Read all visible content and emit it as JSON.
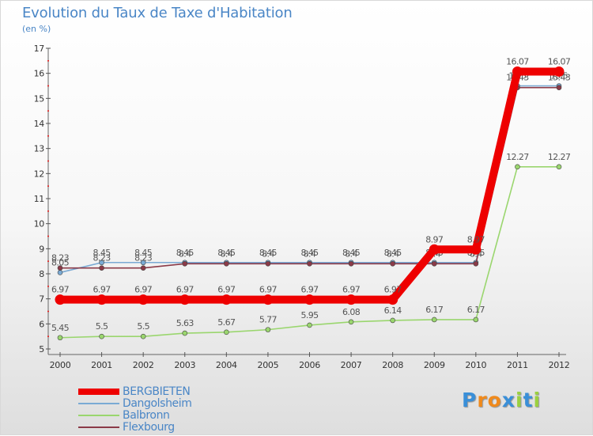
{
  "chart_data": {
    "type": "line",
    "title": "Evolution du Taux de Taxe d'Habitation",
    "subtitle": "(en %)",
    "x": [
      "2000",
      "2001",
      "2002",
      "2003",
      "2004",
      "2005",
      "2006",
      "2007",
      "2008",
      "2009",
      "2010",
      "2011",
      "2012"
    ],
    "ylim": [
      5,
      17
    ],
    "yticks": [
      5,
      6,
      7,
      8,
      9,
      10,
      11,
      12,
      13,
      14,
      15,
      16,
      17
    ],
    "ylabels": [
      "5",
      "6",
      "7",
      "8",
      "9",
      "10",
      "11",
      "12",
      "13",
      "14",
      "15",
      "16",
      "17"
    ],
    "grid": false,
    "series": [
      {
        "name": "Dangolsheim",
        "color": "#7aaad4",
        "values": [
          8.05,
          8.45,
          8.45,
          8.45,
          8.45,
          8.45,
          8.45,
          8.45,
          8.45,
          8.45,
          8.45,
          15.5,
          15.5
        ],
        "labels": [
          "8.05",
          "8.45",
          "8.45",
          "8.45",
          "8.45",
          "8.45",
          "8.45",
          "8.45",
          "8.45",
          "8.45",
          "8.45",
          "15.5",
          "15.5"
        ]
      },
      {
        "name": "Flexbourg",
        "color": "#8b3a48",
        "values": [
          8.23,
          8.23,
          8.23,
          8.4,
          8.4,
          8.4,
          8.4,
          8.4,
          8.4,
          8.4,
          8.4,
          15.43,
          15.43
        ],
        "labels": [
          "8.23",
          "8.23",
          "8.23",
          "8.4",
          "8.4",
          "8.4",
          "8.4",
          "8.4",
          "8.4",
          "8.4",
          "8.4",
          "15.43",
          "15.43"
        ]
      },
      {
        "name": "Balbronn",
        "color": "#9ad66e",
        "values": [
          5.45,
          5.5,
          5.5,
          5.63,
          5.67,
          5.77,
          5.95,
          6.08,
          6.14,
          6.17,
          6.17,
          12.27,
          12.27
        ],
        "labels": [
          "5.45",
          "5.5",
          "5.5",
          "5.63",
          "5.67",
          "5.77",
          "5.95",
          "6.08",
          "6.14",
          "6.17",
          "6.17",
          "12.27",
          "12.27"
        ]
      },
      {
        "name": "BERGBIETEN",
        "color": "#ee0000",
        "values": [
          6.97,
          6.97,
          6.97,
          6.97,
          6.97,
          6.97,
          6.97,
          6.97,
          6.97,
          8.97,
          8.97,
          16.07,
          16.07
        ],
        "labels": [
          "6.97",
          "6.97",
          "6.97",
          "6.97",
          "6.97",
          "6.97",
          "6.97",
          "6.97",
          "6.97",
          "8.97",
          "8.97",
          "16.07",
          "16.07"
        ]
      }
    ],
    "legend": [
      "BERGBIETEN",
      "Dangolsheim",
      "Balbronn",
      "Flexbourg"
    ],
    "legend_placement": "bottom-left"
  },
  "logo": {
    "letters": [
      "P",
      "r",
      "o",
      "x",
      "i",
      "t",
      "i"
    ],
    "colors": [
      "#3a8fd8",
      "#f08a1c",
      "#f08a1c",
      "#3a8fd8",
      "#9bd040",
      "#3a8fd8",
      "#9bd040"
    ]
  }
}
